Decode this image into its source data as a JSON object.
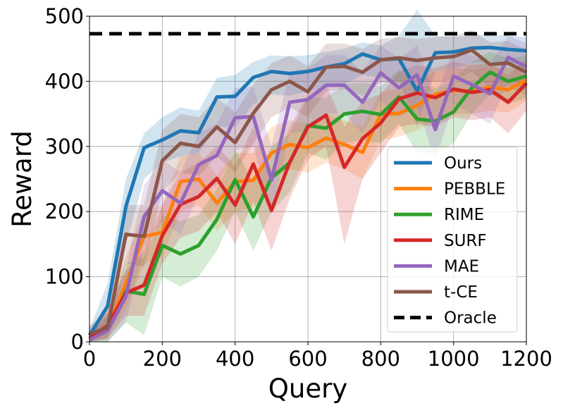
{
  "chart_data": {
    "type": "line",
    "xlabel": "Query",
    "ylabel": "Reward",
    "xlim": [
      0,
      1200
    ],
    "ylim": [
      0,
      500
    ],
    "xticks": [
      0,
      200,
      400,
      600,
      800,
      1000,
      1200
    ],
    "yticks": [
      0,
      100,
      200,
      300,
      400,
      500
    ],
    "grid": true,
    "legend_position": "lower-right",
    "x": [
      0,
      50,
      100,
      150,
      200,
      250,
      300,
      350,
      400,
      450,
      500,
      550,
      600,
      650,
      700,
      750,
      800,
      850,
      900,
      950,
      1000,
      1050,
      1100,
      1150,
      1200
    ],
    "series": [
      {
        "name": "Ours",
        "color": "#1f77b4",
        "values": [
          10,
          55,
          208,
          298,
          310,
          324,
          321,
          376,
          377,
          406,
          415,
          412,
          415,
          422,
          427,
          442,
          433,
          435,
          385,
          444,
          445,
          451,
          452,
          449,
          447
        ],
        "lower": [
          0,
          25,
          150,
          250,
          275,
          285,
          290,
          330,
          330,
          365,
          380,
          378,
          385,
          390,
          395,
          410,
          405,
          400,
          330,
          415,
          420,
          428,
          430,
          428,
          425
        ],
        "upper": [
          20,
          90,
          250,
          320,
          345,
          360,
          355,
          405,
          410,
          430,
          440,
          438,
          440,
          445,
          450,
          460,
          455,
          470,
          510,
          470,
          468,
          470,
          472,
          470,
          468
        ]
      },
      {
        "name": "PEBBLE",
        "color": "#ff7f0e",
        "values": [
          5,
          22,
          90,
          162,
          168,
          246,
          250,
          213,
          246,
          248,
          290,
          303,
          298,
          313,
          303,
          291,
          349,
          351,
          363,
          380,
          386,
          385,
          391,
          387,
          402
        ],
        "lower": [
          0,
          5,
          50,
          120,
          130,
          200,
          210,
          170,
          200,
          205,
          250,
          265,
          260,
          275,
          265,
          250,
          310,
          315,
          325,
          340,
          350,
          350,
          355,
          352,
          370
        ],
        "upper": [
          15,
          45,
          130,
          200,
          210,
          285,
          290,
          255,
          290,
          290,
          330,
          340,
          335,
          350,
          340,
          330,
          385,
          388,
          400,
          415,
          420,
          418,
          422,
          420,
          430
        ]
      },
      {
        "name": "RIME",
        "color": "#2ca02c",
        "values": [
          3,
          18,
          78,
          73,
          148,
          135,
          148,
          188,
          249,
          192,
          252,
          275,
          332,
          328,
          350,
          354,
          349,
          376,
          342,
          339,
          353,
          390,
          414,
          400,
          408
        ],
        "lower": [
          0,
          0,
          30,
          10,
          100,
          85,
          100,
          140,
          200,
          140,
          200,
          230,
          290,
          280,
          305,
          310,
          305,
          335,
          290,
          290,
          305,
          350,
          380,
          365,
          375
        ],
        "upper": [
          10,
          40,
          120,
          130,
          195,
          185,
          195,
          235,
          295,
          245,
          300,
          320,
          375,
          375,
          395,
          398,
          392,
          418,
          395,
          390,
          400,
          430,
          445,
          435,
          440
        ]
      },
      {
        "name": "SURF",
        "color": "#d62728",
        "values": [
          5,
          25,
          75,
          87,
          163,
          211,
          223,
          251,
          210,
          273,
          202,
          276,
          330,
          348,
          268,
          312,
          336,
          373,
          382,
          375,
          388,
          383,
          387,
          368,
          397
        ],
        "lower": [
          0,
          5,
          40,
          40,
          120,
          160,
          170,
          200,
          150,
          215,
          140,
          220,
          280,
          300,
          150,
          250,
          290,
          330,
          335,
          330,
          345,
          340,
          345,
          320,
          355
        ],
        "upper": [
          15,
          50,
          110,
          140,
          210,
          260,
          275,
          300,
          270,
          330,
          265,
          330,
          380,
          395,
          330,
          370,
          380,
          415,
          425,
          420,
          430,
          425,
          428,
          410,
          435
        ]
      },
      {
        "name": "MAE",
        "color": "#9467bd",
        "values": [
          3,
          17,
          70,
          192,
          232,
          213,
          272,
          286,
          344,
          346,
          248,
          368,
          372,
          394,
          394,
          368,
          413,
          390,
          410,
          326,
          408,
          395,
          381,
          437,
          422
        ],
        "lower": [
          0,
          0,
          30,
          145,
          185,
          165,
          225,
          240,
          295,
          300,
          195,
          320,
          325,
          350,
          350,
          320,
          370,
          345,
          360,
          280,
          365,
          350,
          335,
          400,
          385
        ],
        "upper": [
          10,
          40,
          110,
          240,
          280,
          260,
          320,
          335,
          390,
          392,
          300,
          415,
          420,
          440,
          440,
          415,
          455,
          435,
          455,
          375,
          450,
          440,
          428,
          470,
          458
        ]
      },
      {
        "name": "t-CE",
        "color": "#8c564b",
        "values": [
          12,
          22,
          165,
          162,
          278,
          305,
          300,
          330,
          306,
          351,
          387,
          400,
          384,
          422,
          423,
          414,
          433,
          436,
          432,
          436,
          438,
          448,
          426,
          428,
          414
        ],
        "lower": [
          0,
          5,
          120,
          115,
          230,
          260,
          255,
          285,
          260,
          305,
          345,
          360,
          345,
          385,
          388,
          378,
          398,
          400,
          398,
          400,
          402,
          415,
          390,
          392,
          378
        ],
        "upper": [
          25,
          45,
          210,
          210,
          325,
          350,
          345,
          375,
          352,
          395,
          428,
          440,
          423,
          458,
          458,
          450,
          465,
          468,
          465,
          468,
          470,
          478,
          460,
          462,
          448
        ]
      },
      {
        "name": "Oracle",
        "color": "#000000",
        "dashed": true,
        "values": [
          473,
          473,
          473,
          473,
          473,
          473,
          473,
          473,
          473,
          473,
          473,
          473,
          473,
          473,
          473,
          473,
          473,
          473,
          473,
          473,
          473,
          473,
          473,
          473,
          473
        ]
      }
    ]
  }
}
